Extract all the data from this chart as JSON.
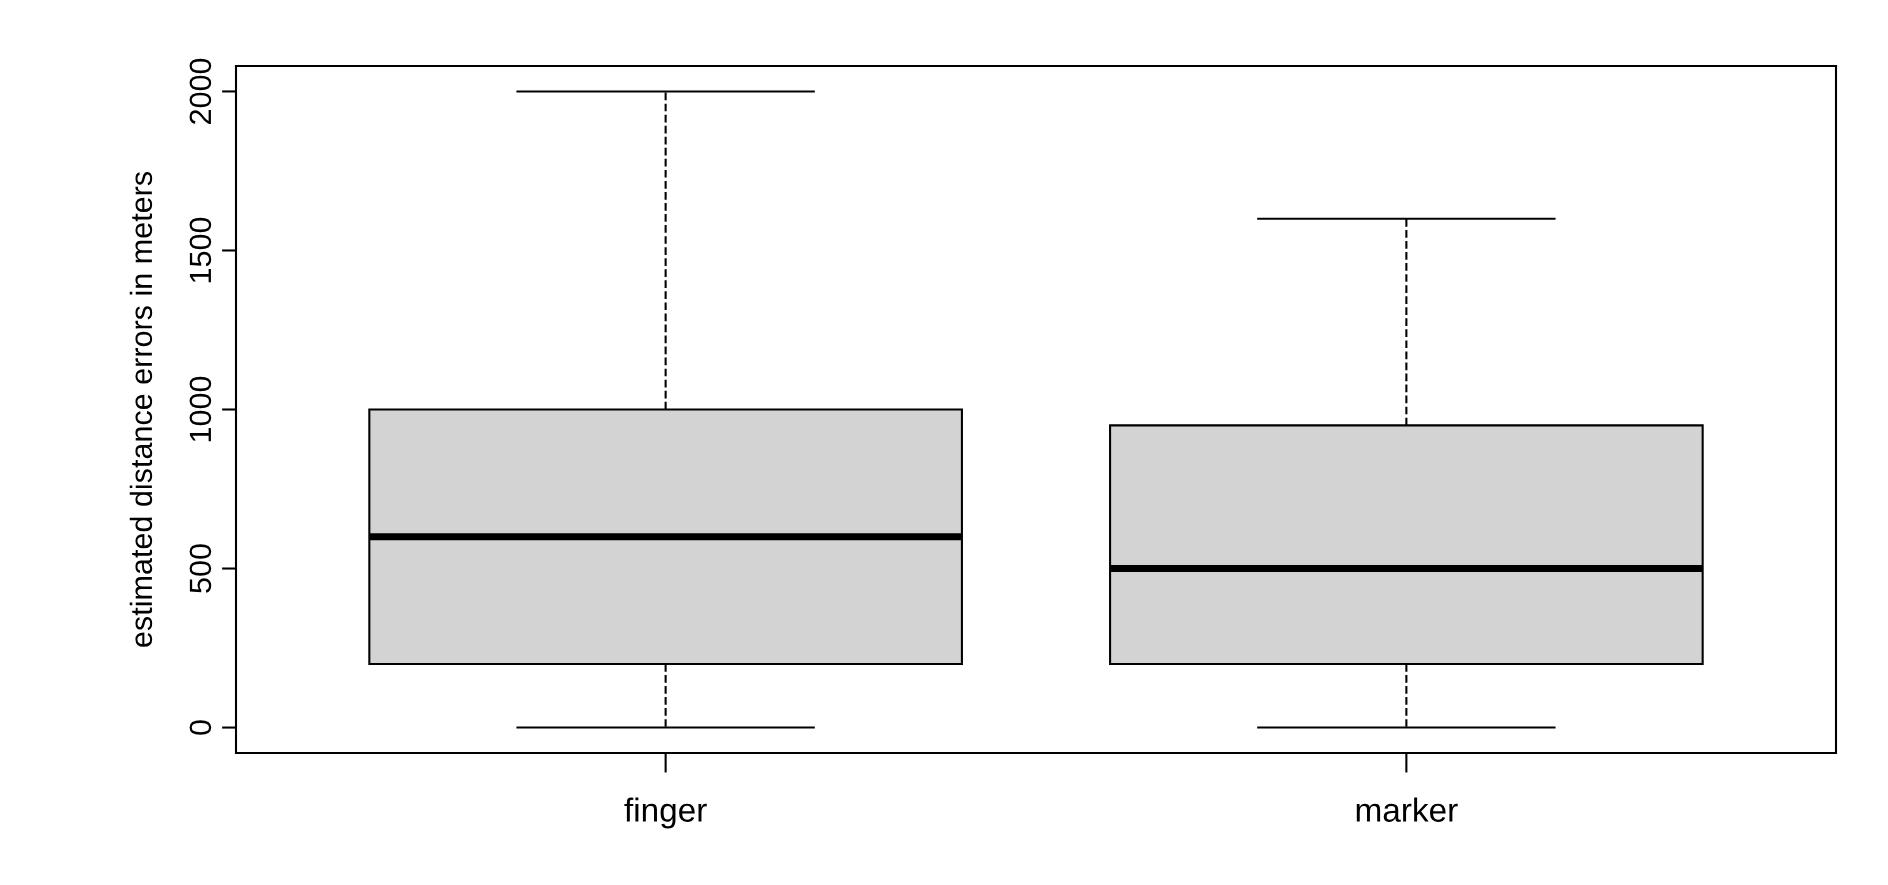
{
  "chart_data": {
    "type": "box",
    "ylabel": "estimated distance errors in meters",
    "categories": [
      "finger",
      "marker"
    ],
    "series": [
      {
        "color": "#d3d3d3",
        "boxes": [
          {
            "low": 0,
            "q1": 200,
            "median": 600,
            "q3": 1000,
            "high": 2000
          },
          {
            "low": 0,
            "q1": 200,
            "median": 500,
            "q3": 950,
            "high": 1600
          }
        ]
      }
    ],
    "ylim": [
      -80,
      2080
    ],
    "yticks": [
      0,
      500,
      1000,
      1500,
      2000
    ],
    "grid": false,
    "line_style": "dashed"
  }
}
